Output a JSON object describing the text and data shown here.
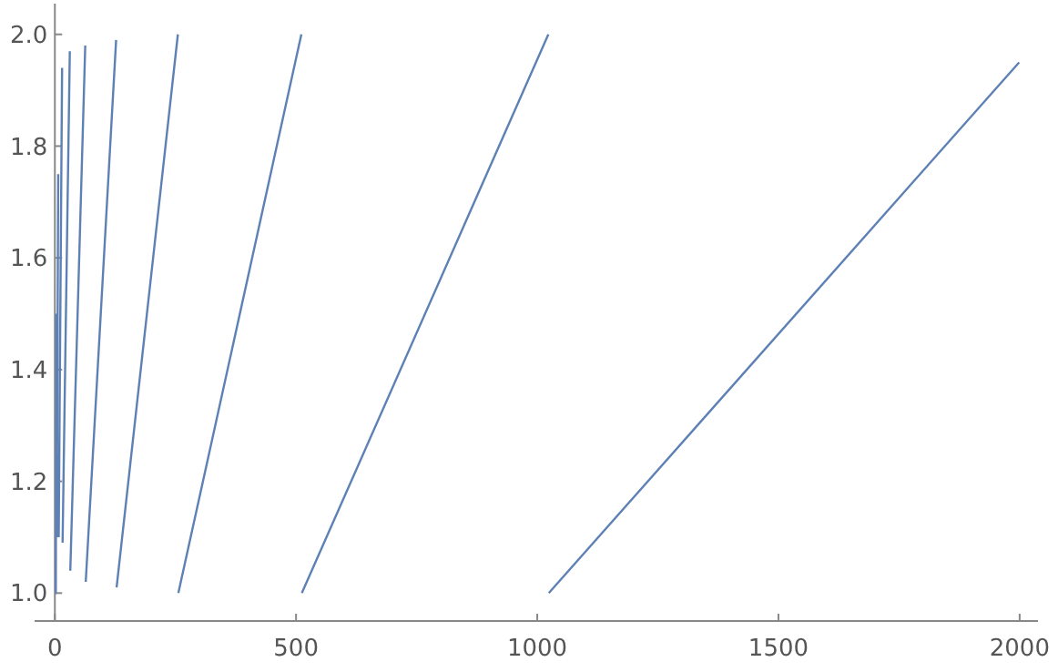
{
  "chart_data": {
    "type": "line",
    "x": [
      1,
      2,
      3,
      3.5,
      4,
      7,
      7.5,
      8,
      15,
      15.5,
      16,
      31,
      31.5,
      32,
      63,
      63.5,
      64,
      127,
      127.5,
      128,
      255,
      255.5,
      256,
      511,
      511.5,
      512,
      1023,
      1023.5,
      1024,
      1999
    ],
    "series": [
      {
        "color": "#5e81b5",
        "values": [
          1,
          1,
          1.5,
          null,
          1.1,
          1.75,
          null,
          1.1,
          1.94,
          null,
          1.09,
          1.97,
          null,
          1.04,
          1.98,
          null,
          1.02,
          1.99,
          null,
          1.01,
          2,
          null,
          1,
          2,
          null,
          1,
          2,
          null,
          1,
          1.95
        ]
      }
    ],
    "xlim": [
      -42,
      2038
    ],
    "ylim": [
      0.95,
      2.055
    ],
    "xticks": [
      0,
      500,
      1000,
      1500,
      2000
    ],
    "yticks": [
      {
        "value": 1,
        "label": "1.0"
      },
      {
        "value": 1.2,
        "label": "1.2"
      },
      {
        "value": 1.4,
        "label": "1.4"
      },
      {
        "value": 1.6,
        "label": "1.6"
      },
      {
        "value": 1.8,
        "label": "1.8"
      },
      {
        "value": 2,
        "label": "2.0"
      }
    ],
    "grid": false,
    "marker": "none",
    "line_style": "solid"
  }
}
